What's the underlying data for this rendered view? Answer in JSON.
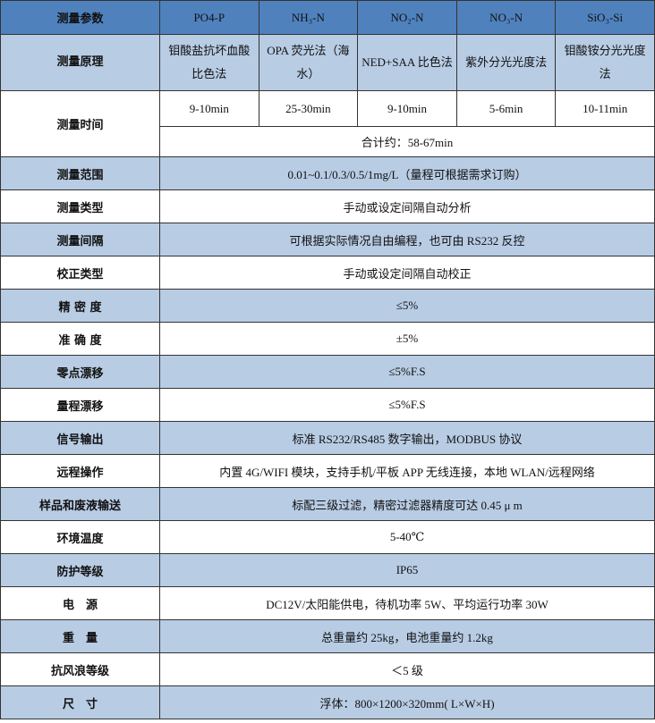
{
  "colors": {
    "header": "#4f81bd",
    "light_row": "#b8cce4"
  },
  "header": {
    "label": "测量参数",
    "params": [
      "PO4-P",
      "NH₃-N",
      "NO₂-N",
      "NO₃-N",
      "SiO₃-Si"
    ]
  },
  "principle": {
    "label": "测量原理",
    "values": [
      "钼酸盐抗坏血酸比色法",
      "OPA 荧光法（海水）",
      "NED+SAA 比色法",
      "紫外分光光度法",
      "钼酸铵分光光度法"
    ]
  },
  "time": {
    "label": "测量时间",
    "values": [
      "9-10min",
      "25-30min",
      "9-10min",
      "5-6min",
      "10-11min"
    ],
    "total": "合计约：58-67min"
  },
  "rows": [
    {
      "label": "测量范围",
      "value": "0.01~0.1/0.3/0.5/1mg/L（量程可根据需求订购）"
    },
    {
      "label": "测量类型",
      "value": "手动或设定间隔自动分析"
    },
    {
      "label": "测量间隔",
      "value": "可根据实际情况自由编程，也可由 RS232 反控"
    },
    {
      "label": "校正类型",
      "value": "手动或设定间隔自动校正"
    },
    {
      "label": "精 密 度",
      "value": "≤5%"
    },
    {
      "label": "准 确 度",
      "value": "±5%"
    },
    {
      "label": "零点漂移",
      "value": "≤5%F.S"
    },
    {
      "label": "量程漂移",
      "value": "≤5%F.S"
    },
    {
      "label": "信号输出",
      "value": "标准 RS232/RS485 数字输出，MODBUS 协议"
    },
    {
      "label": "远程操作",
      "value": "内置 4G/WIFI 模块，支持手机/平板 APP 无线连接，本地 WLAN/远程网络"
    },
    {
      "label": "样品和废液输送",
      "value": "标配三级过滤，精密过滤器精度可达 0.45 μ m"
    },
    {
      "label": "环境温度",
      "value": "5-40℃"
    },
    {
      "label": "防护等级",
      "value": "IP65"
    },
    {
      "label": "电　源",
      "value": "DC12V/太阳能供电，待机功率 5W、平均运行功率 30W"
    },
    {
      "label": "重　量",
      "value": "总重量约 25kg，电池重量约 1.2kg"
    },
    {
      "label": "抗风浪等级",
      "value": "＜5 级"
    },
    {
      "label": "尺　寸",
      "value": "浮体：800×1200×320mm( L×W×H)"
    }
  ]
}
